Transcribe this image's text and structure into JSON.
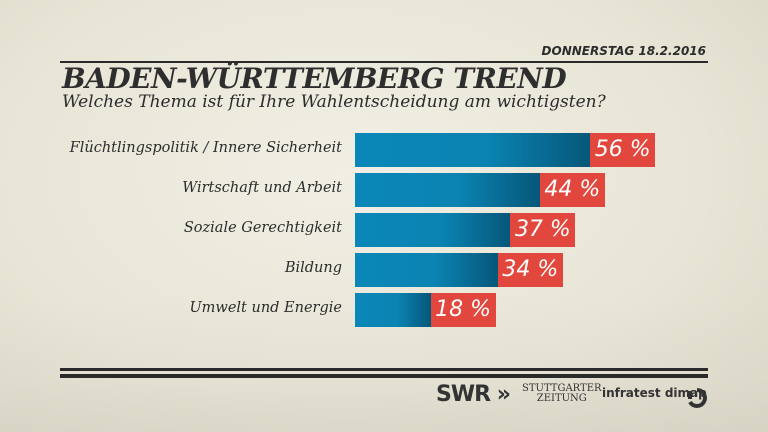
{
  "header": {
    "date": "DONNERSTAG  18.2.2016",
    "title": "BADEN-WÜRTTEMBERG TREND",
    "subtitle": "Welches Thema ist für Ihre Wahlentscheidung am wichtigsten?"
  },
  "chart_data": {
    "type": "bar",
    "orientation": "horizontal",
    "categories": [
      "Flüchtlingspolitik / Innere Sicherheit",
      "Wirtschaft und Arbeit",
      "Soziale Gerechtigkeit",
      "Bildung",
      "Umwelt und Energie"
    ],
    "values": [
      56,
      44,
      37,
      34,
      18
    ],
    "value_labels": [
      "56 %",
      "44 %",
      "37 %",
      "34 %",
      "18 %"
    ],
    "unit": "%",
    "colors": {
      "bar": "#0a86b8",
      "label_box": "#e2473d"
    }
  },
  "footer": {
    "logos": [
      "SWR",
      "STUTTGARTER ZEITUNG",
      "infratest dimap"
    ],
    "swr": "SWR",
    "stz_line1": "STUTTGARTER",
    "stz_line2": "ZEITUNG",
    "infratest": "infratest dimap"
  }
}
